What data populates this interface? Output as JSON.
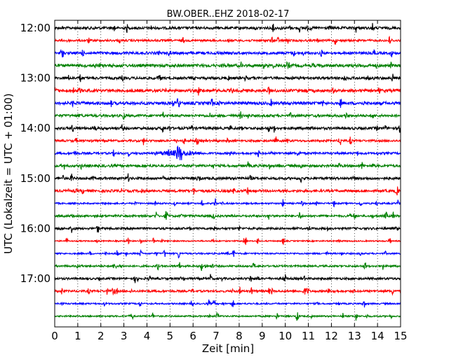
{
  "chart_data": {
    "type": "line",
    "title": "BW.OBER..EHZ 2018-02-17",
    "xlabel": "Zeit  [min]",
    "ylabel": "UTC (Lokalzeit = UTC + 01:00)",
    "xlim": [
      0,
      15
    ],
    "x_ticks": [
      0,
      1,
      2,
      3,
      4,
      5,
      6,
      7,
      8,
      9,
      10,
      11,
      12,
      13,
      14,
      15
    ],
    "y_ticks": [
      "12:00",
      "13:00",
      "14:00",
      "15:00",
      "16:00",
      "17:00"
    ],
    "vertical_grid": "dotted",
    "trace_interval_minutes": 15,
    "trace_color_cycle": [
      "#000000",
      "#ff0000",
      "#0000ff",
      "#008000"
    ],
    "traces": [
      {
        "start": "12:00",
        "color": "#000000",
        "amplitude": 0.3
      },
      {
        "start": "12:15",
        "color": "#ff0000",
        "amplitude": 0.25
      },
      {
        "start": "12:30",
        "color": "#0000ff",
        "amplitude": 0.3
      },
      {
        "start": "12:45",
        "color": "#008000",
        "amplitude": 0.35
      },
      {
        "start": "13:00",
        "color": "#000000",
        "amplitude": 0.3
      },
      {
        "start": "13:15",
        "color": "#ff0000",
        "amplitude": 0.35
      },
      {
        "start": "13:30",
        "color": "#0000ff",
        "amplitude": 0.35
      },
      {
        "start": "13:45",
        "color": "#008000",
        "amplitude": 0.3
      },
      {
        "start": "14:00",
        "color": "#000000",
        "amplitude": 0.3
      },
      {
        "start": "14:15",
        "color": "#ff0000",
        "amplitude": 0.25
      },
      {
        "start": "14:30",
        "color": "#0000ff",
        "amplitude": 0.25,
        "event": {
          "start_min": 3.6,
          "end_min": 8.5,
          "peak_min": 5.4,
          "peak_amplitude": 1.9
        }
      },
      {
        "start": "14:45",
        "color": "#008000",
        "amplitude": 0.3
      },
      {
        "start": "15:00",
        "color": "#000000",
        "amplitude": 0.3
      },
      {
        "start": "15:15",
        "color": "#ff0000",
        "amplitude": 0.3
      },
      {
        "start": "15:30",
        "color": "#0000ff",
        "amplitude": 0.18
      },
      {
        "start": "15:45",
        "color": "#008000",
        "amplitude": 0.25
      },
      {
        "start": "16:00",
        "color": "#000000",
        "amplitude": 0.25
      },
      {
        "start": "16:15",
        "color": "#ff0000",
        "amplitude": 0.15
      },
      {
        "start": "16:30",
        "color": "#0000ff",
        "amplitude": 0.18
      },
      {
        "start": "16:45",
        "color": "#008000",
        "amplitude": 0.22
      },
      {
        "start": "17:00",
        "color": "#000000",
        "amplitude": 0.25
      },
      {
        "start": "17:15",
        "color": "#ff0000",
        "amplitude": 0.25,
        "events": [
          {
            "start_min": 1.5,
            "end_min": 3.4,
            "peak_min": 2.6,
            "peak_amplitude": 0.75
          },
          {
            "start_min": 9.8,
            "end_min": 12.2,
            "peak_min": 10.9,
            "peak_amplitude": 0.8
          }
        ]
      },
      {
        "start": "17:30",
        "color": "#0000ff",
        "amplitude": 0.18
      },
      {
        "start": "17:45",
        "color": "#008000",
        "amplitude": 0.18
      }
    ]
  }
}
